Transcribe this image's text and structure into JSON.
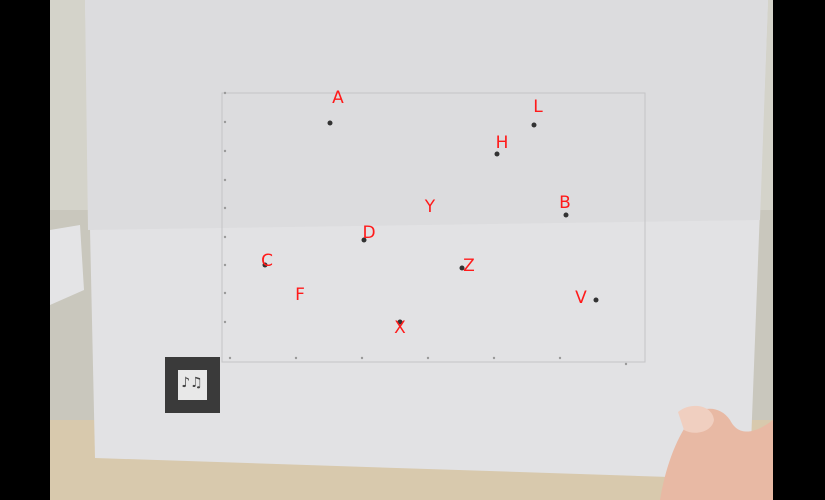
{
  "labels": [
    "A",
    "L",
    "H",
    "Y",
    "B",
    "D",
    "C",
    "Z",
    "F",
    "V",
    "X"
  ]
}
